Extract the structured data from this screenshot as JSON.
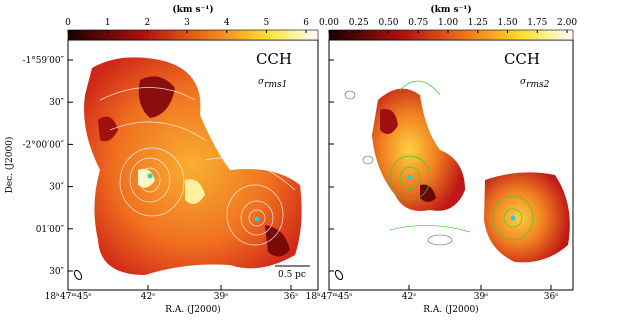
{
  "panels": [
    {
      "colorbar": {
        "label": "(km s⁻¹)",
        "lim": [
          0,
          6.3
        ],
        "ticks": [
          0,
          1,
          2,
          3,
          4,
          5,
          6
        ]
      },
      "line": "CCH",
      "sigma": "σ",
      "sigma_sub": "rms1",
      "scale_bar": "0.5 pc",
      "y_label": "Dec. (J2000)",
      "x_label": "R.A. (J2000)",
      "y_ticks": [
        "-1°59′00″",
        "30″",
        "-2°00′00″",
        "30″",
        "01′00″",
        "30″"
      ],
      "x_ticks": [
        "18ʰ47ᵐ45ˢ",
        "42ˢ",
        "39ˢ",
        "36ˢ"
      ]
    },
    {
      "colorbar": {
        "label": "(km s⁻¹)",
        "lim": [
          0,
          2.05
        ],
        "ticks": [
          {
            "value": 0,
            "label": "0.00"
          },
          {
            "value": 0.25,
            "label": "0.25"
          },
          {
            "value": 0.5,
            "label": "0.50"
          },
          {
            "value": 0.75,
            "label": "0.75"
          },
          {
            "value": 1,
            "label": "1.00"
          },
          {
            "value": 1.25,
            "label": "1.25"
          },
          {
            "value": 1.5,
            "label": "1.50"
          },
          {
            "value": 1.75,
            "label": "1.75"
          },
          {
            "value": 2,
            "label": "2.00"
          }
        ]
      },
      "line": "CCH",
      "sigma": "σ",
      "sigma_sub": "rms2",
      "x_label": "R.A. (J2000)",
      "x_ticks": [
        "18ʰ47ᵐ45ˢ",
        "42ˢ",
        "39ˢ",
        "36ˢ"
      ]
    }
  ]
}
